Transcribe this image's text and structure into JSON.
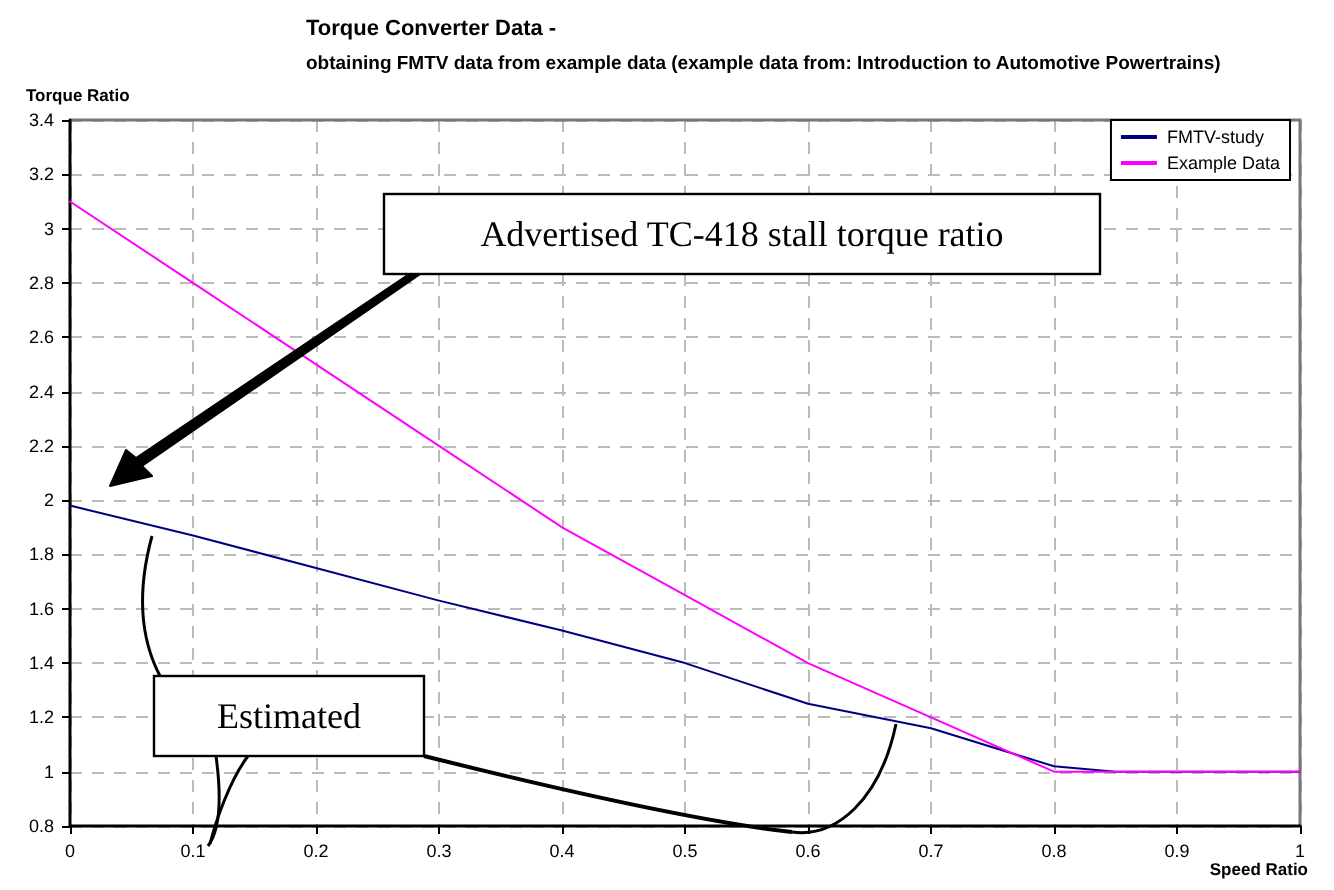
{
  "chart_data": {
    "type": "line",
    "title": "Torque Converter Data -",
    "subtitle": "obtaining FMTV data from example data (example data from: Introduction to Automotive Powertrains)",
    "xlabel": "Speed Ratio",
    "ylabel": "Torque Ratio",
    "series": [
      {
        "name": "FMTV-study",
        "color": "#000080",
        "x": [
          0,
          0.1,
          0.2,
          0.3,
          0.4,
          0.5,
          0.6,
          0.7,
          0.8,
          0.85,
          1
        ],
        "values": [
          1.98,
          1.87,
          1.75,
          1.63,
          1.52,
          1.4,
          1.25,
          1.16,
          1.02,
          1.0,
          1.0
        ]
      },
      {
        "name": "Example Data",
        "color": "#ff00ff",
        "x": [
          0,
          0.1,
          0.2,
          0.3,
          0.4,
          0.5,
          0.6,
          0.7,
          0.8,
          0.85,
          1
        ],
        "values": [
          3.1,
          2.8,
          2.5,
          2.2,
          1.9,
          1.65,
          1.4,
          1.2,
          1.0,
          1.0,
          1.0
        ]
      }
    ],
    "xlim": [
      0,
      1
    ],
    "xticks": [
      0,
      0.1,
      0.2,
      0.3,
      0.4,
      0.5,
      0.6,
      0.7,
      0.8,
      0.9,
      1
    ],
    "ylim": [
      0.8,
      3.4
    ],
    "yticks": [
      0.8,
      1,
      1.2,
      1.4,
      1.6,
      1.8,
      2,
      2.2,
      2.4,
      2.6,
      2.8,
      3,
      3.2,
      3.4
    ],
    "grid": true,
    "legend": "top right",
    "marker": "none",
    "line_style": "solid",
    "annotations": [
      "Advertised TC-418 stall torque ratio",
      "Estimated"
    ]
  }
}
